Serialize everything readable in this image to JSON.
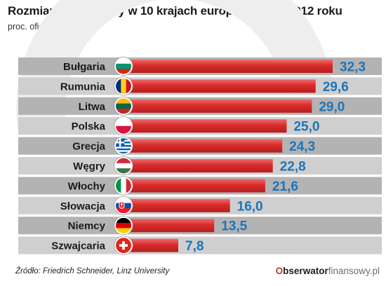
{
  "header": {
    "title": "Rozmiar szarej strefy w 10 krajach europejskich w 2012 roku",
    "subtitle": "proc. oficjalnego PKB"
  },
  "footer": {
    "source": "Źródło: Friedrich Schneider, Linz University",
    "brand_o": "O",
    "brand_bold": "bserwator",
    "brand_rest": "finansowy.pl"
  },
  "colors": {
    "bar": "#d92b2b",
    "bar_highlight": "#ef6a6a",
    "value_text": "#1b75bc",
    "label_text": "#1a1a1a",
    "row_band": "#b3b3b3",
    "row_band_alt": "#cfcfcf"
  },
  "chart_data": {
    "type": "bar",
    "orientation": "horizontal",
    "title": "Rozmiar szarej strefy w 10 krajach europejskich w 2012 roku",
    "subtitle": "proc. oficjalnego PKB",
    "categories": [
      "Bułgaria",
      "Rumunia",
      "Litwa",
      "Polska",
      "Grecja",
      "Węgry",
      "Włochy",
      "Słowacja",
      "Niemcy",
      "Szwajcaria"
    ],
    "values": [
      32.3,
      29.6,
      29.0,
      25.0,
      24.3,
      22.8,
      21.6,
      16.0,
      13.5,
      7.8
    ],
    "value_labels": [
      "32,3",
      "29,6",
      "29,0",
      "25,0",
      "24,3",
      "22,8",
      "21,6",
      "16,0",
      "13,5",
      "7,8"
    ],
    "flags": [
      "bulgaria-flag-icon",
      "romania-flag-icon",
      "lithuania-flag-icon",
      "poland-flag-icon",
      "greece-flag-icon",
      "hungary-flag-icon",
      "italy-flag-icon",
      "slovakia-flag-icon",
      "germany-flag-icon",
      "switzerland-flag-icon"
    ],
    "xlim": [
      0,
      32.3
    ],
    "grid": false,
    "legend": "none"
  }
}
